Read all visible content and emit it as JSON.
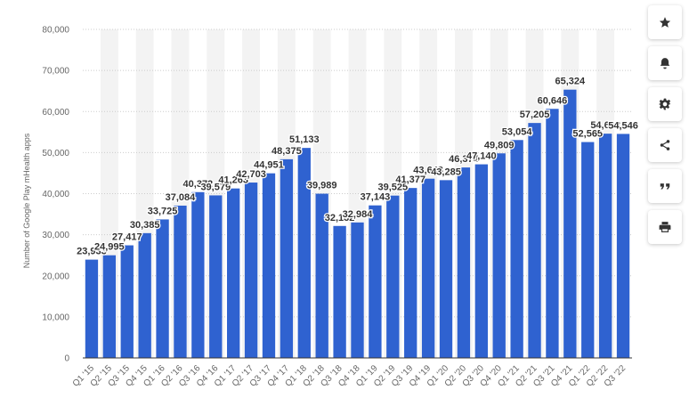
{
  "toolbar": {
    "icons": [
      "star-icon",
      "bell-icon",
      "gear-icon",
      "share-icon",
      "quote-icon",
      "print-icon"
    ]
  },
  "colors": {
    "bar": "#2f62d0",
    "band": "#f3f3f3",
    "grid": "#cccccc",
    "text": "#333333",
    "axis_text": "#666666"
  },
  "chart_data": {
    "type": "bar",
    "ylabel": "Number of Google Play mHealth apps",
    "ylim": [
      0,
      80000
    ],
    "yticks": [
      0,
      10000,
      20000,
      30000,
      40000,
      50000,
      60000,
      70000,
      80000
    ],
    "ytick_labels": [
      "0",
      "10,000",
      "20,000",
      "30,000",
      "40,000",
      "50,000",
      "60,000",
      "70,000",
      "80,000"
    ],
    "grid": true,
    "categories": [
      "Q1 '15",
      "Q2 '15",
      "Q3 '15",
      "Q4 '15",
      "Q1 '16",
      "Q2 '16",
      "Q3 '16",
      "Q4 '16",
      "Q1 '17",
      "Q2 '17",
      "Q3 '17",
      "Q4 '17",
      "Q1 '18",
      "Q2 '18",
      "Q3 '18",
      "Q4 '18",
      "Q1 '19",
      "Q2 '19",
      "Q3 '19",
      "Q4 '19",
      "Q1 '20",
      "Q2 '20",
      "Q3 '20",
      "Q4 '20",
      "Q1 '21",
      "Q2 '21",
      "Q3 '21",
      "Q4 '21",
      "Q1 '22",
      "Q2 '22",
      "Q3 '22"
    ],
    "values": [
      23933,
      24995,
      27417,
      30385,
      33725,
      37084,
      40372,
      39579,
      41263,
      42703,
      44951,
      48375,
      51133,
      39989,
      32132,
      32984,
      37143,
      39525,
      41377,
      43643,
      43285,
      46374,
      47140,
      49809,
      53054,
      57205,
      60646,
      65324,
      52565,
      54603,
      54546
    ],
    "value_labels": [
      "23,933",
      "24,995",
      "27,417",
      "30,385",
      "33,725",
      "37,084",
      "40,372",
      "39,579",
      "41,263",
      "42,703",
      "44,951",
      "48,375",
      "51,133",
      "39,989",
      "32,132",
      "32,984",
      "37,143",
      "39,525",
      "41,377",
      "43,643",
      "43,285",
      "46,374",
      "47,140",
      "49,809",
      "53,054",
      "57,205",
      "60,646",
      "65,324",
      "52,565",
      "54,603",
      "54,546"
    ]
  }
}
